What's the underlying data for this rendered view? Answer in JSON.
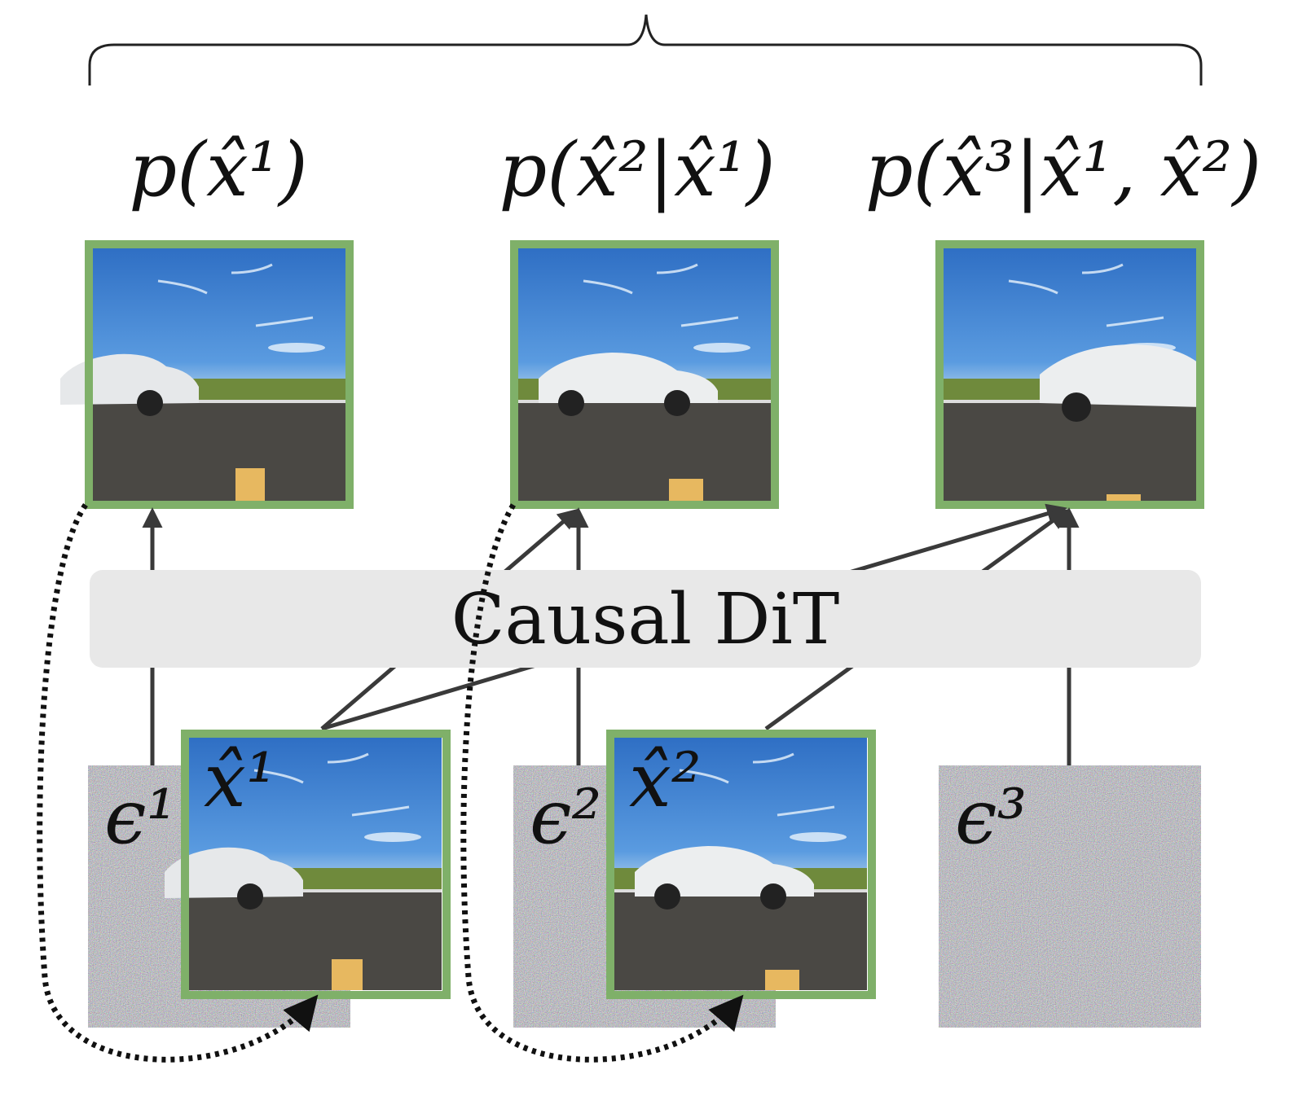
{
  "top_labels": [
    "p(x̂¹)",
    "p(x̂²|x̂¹)",
    "p(x̂³|x̂¹, x̂²)"
  ],
  "model_label": "Causal DiT",
  "frame_labels": [
    "x̂¹",
    "x̂²"
  ],
  "noise_labels": [
    "ϵ¹",
    "ϵ²",
    "ϵ³"
  ]
}
